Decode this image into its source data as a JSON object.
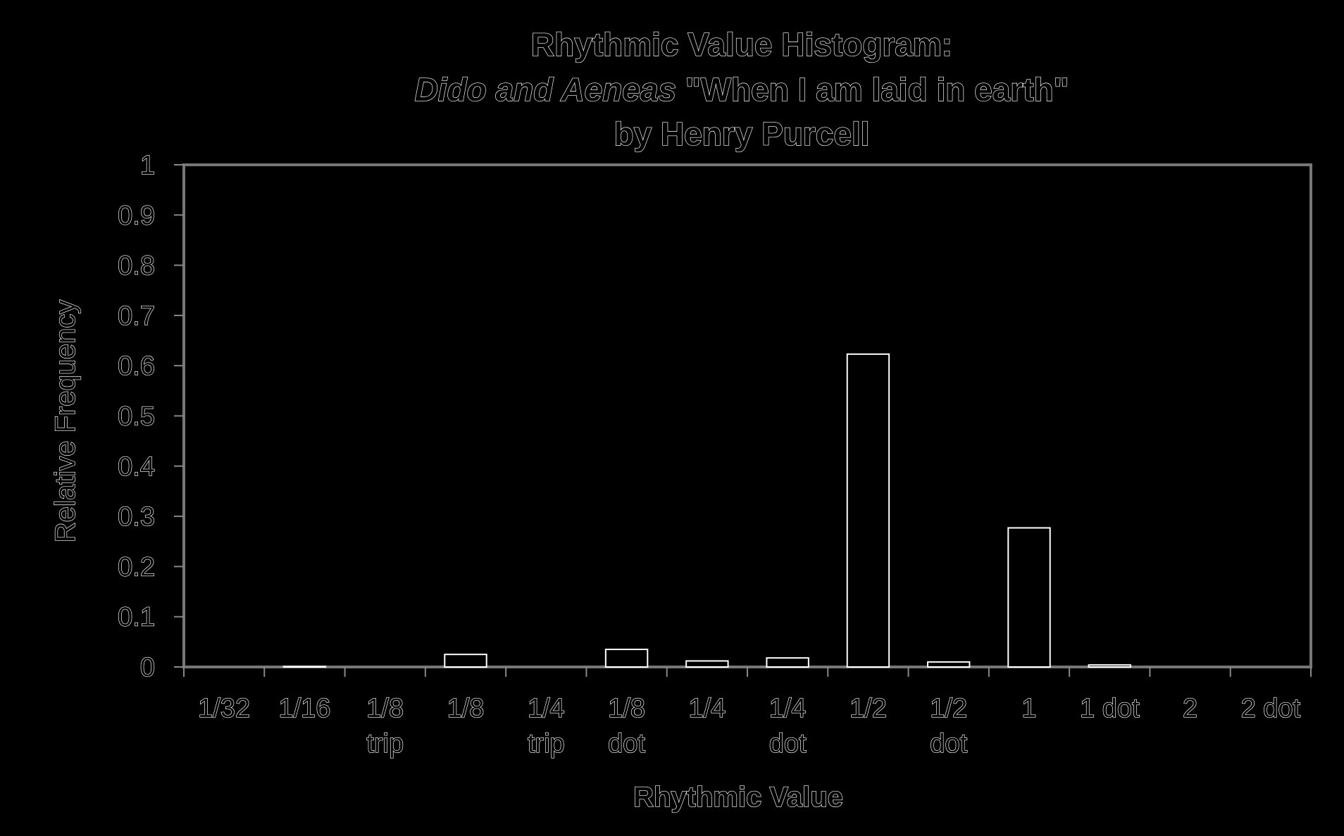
{
  "chart_data": {
    "type": "bar",
    "title_lines": [
      "Rhythmic Value Histogram:",
      "Dido and Aeneas \"When I am laid in earth\"",
      "by Henry Purcell"
    ],
    "title_italic_part": "Dido and Aeneas",
    "title_line2_rest": " \"When I am laid in earth\"",
    "xlabel": "Rhythmic Value",
    "ylabel": "Relative Frequency",
    "ylim": [
      0,
      1
    ],
    "yticks": [
      "0",
      "0.1",
      "0.2",
      "0.3",
      "0.4",
      "0.5",
      "0.6",
      "0.7",
      "0.8",
      "0.9",
      "1"
    ],
    "categories": [
      [
        "1/32"
      ],
      [
        "1/16"
      ],
      [
        "1/8",
        "trip"
      ],
      [
        "1/8"
      ],
      [
        "1/4",
        "trip"
      ],
      [
        "1/8",
        "dot"
      ],
      [
        "1/4"
      ],
      [
        "1/4",
        "dot"
      ],
      [
        "1/2"
      ],
      [
        "1/2",
        "dot"
      ],
      [
        "1"
      ],
      [
        "1 dot"
      ],
      [
        "2"
      ],
      [
        "2 dot"
      ]
    ],
    "values": [
      0,
      0.001,
      0,
      0.025,
      0,
      0.035,
      0.012,
      0.018,
      0.623,
      0.01,
      0.277,
      0.004,
      0,
      0
    ],
    "grid": false,
    "legend": "none",
    "colors": {
      "background": "#000000",
      "outline": "#ffffff",
      "axis": "#777777"
    }
  }
}
